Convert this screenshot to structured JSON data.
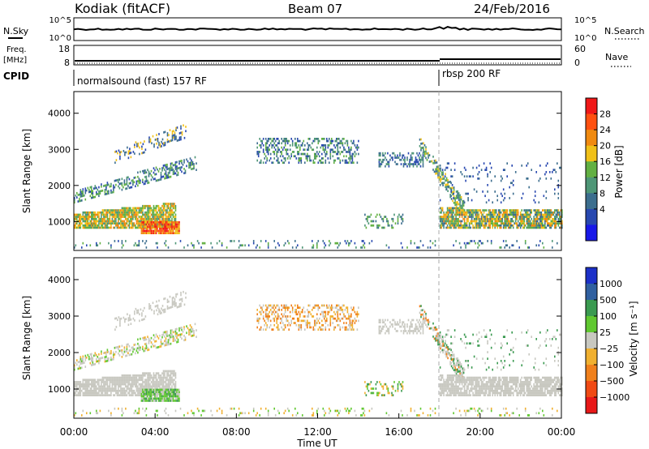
{
  "header": {
    "station": "Kodiak (fitACF)",
    "beam": "Beam 07",
    "date": "24/Feb/2016"
  },
  "summary_panels": {
    "nsky_label": "N.Sky",
    "nsky_ticks": [
      "10^5",
      "10^0"
    ],
    "nsearch_label": "N.Search",
    "nsearch_ticks": [
      "10^5",
      "10^0"
    ],
    "freq_label_1": "Freq.",
    "freq_label_2": "[MHz]",
    "freq_ticks": [
      "18",
      "8"
    ],
    "nave_label": "Nave",
    "nave_ticks": [
      "60",
      "0"
    ],
    "cpid_label": "CPID",
    "cpid_segments": [
      {
        "name": "normalsound (fast) 157 RF",
        "start_hour": 0
      },
      {
        "name": "rbsp 200 RF",
        "start_hour": 17.9
      }
    ]
  },
  "colors": {
    "power_scale": [
      "#1818e8",
      "#2848b0",
      "#3c6e8e",
      "#4e9676",
      "#62b042",
      "#f0c018",
      "#f08a10",
      "#ff5010",
      "#f01818"
    ],
    "velocity_scale": [
      "#e81818",
      "#f04a14",
      "#f0801c",
      "#f0b030",
      "#c8c8c0",
      "#60c830",
      "#3a9a50",
      "#3060a0",
      "#1c30c8"
    ]
  },
  "chart_data": [
    {
      "type": "heatmap",
      "name": "power",
      "ylabel": "Slant Range [km]",
      "yticks": [
        1000,
        2000,
        3000,
        4000
      ],
      "ylim": [
        200,
        4600
      ],
      "xlim": [
        0,
        24
      ],
      "colorbar": {
        "label": "Power [dB]",
        "ticks": [
          "28",
          "24",
          "20",
          "16",
          "12",
          "8",
          "4"
        ]
      }
    },
    {
      "type": "heatmap",
      "name": "velocity",
      "ylabel": "Slant Range [km]",
      "yticks": [
        1000,
        2000,
        3000,
        4000
      ],
      "ylim": [
        200,
        4600
      ],
      "xlim": [
        0,
        24
      ],
      "xlabel": "Time UT",
      "xticks": [
        "00:00",
        "04:00",
        "08:00",
        "12:00",
        "16:00",
        "20:00",
        "00:00"
      ],
      "colorbar": {
        "label": "Velocity [m s⁻¹]",
        "ticks": [
          "1000",
          "500",
          "100",
          "25",
          "−25",
          "−100",
          "−500",
          "−1000"
        ]
      }
    }
  ]
}
